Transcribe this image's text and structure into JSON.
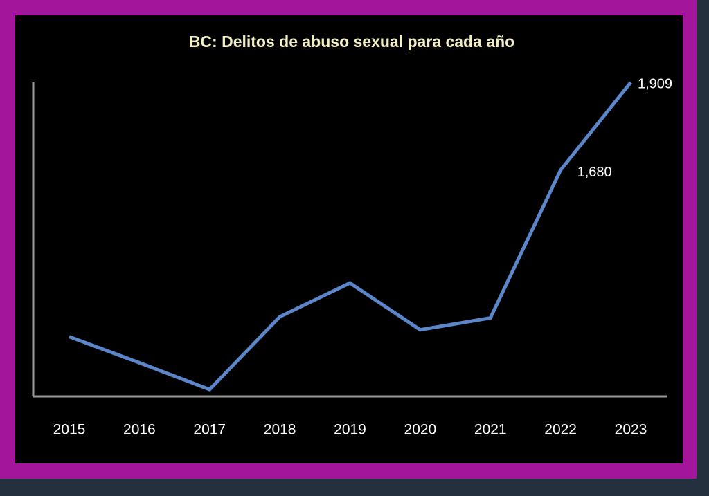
{
  "chart_data": {
    "type": "line",
    "title": "BC: Delitos de abuso sexual para cada año",
    "categories": [
      "2015",
      "2016",
      "2017",
      "2018",
      "2019",
      "2020",
      "2021",
      "2022",
      "2023"
    ],
    "values": [
      1245,
      1177,
      1107,
      1297,
      1385,
      1263,
      1294,
      1680,
      1909
    ],
    "value_labels": [
      null,
      null,
      null,
      null,
      null,
      null,
      null,
      "1,680",
      "1,909"
    ],
    "color": "#5b86c9",
    "ylim": [
      1100,
      1909
    ]
  }
}
